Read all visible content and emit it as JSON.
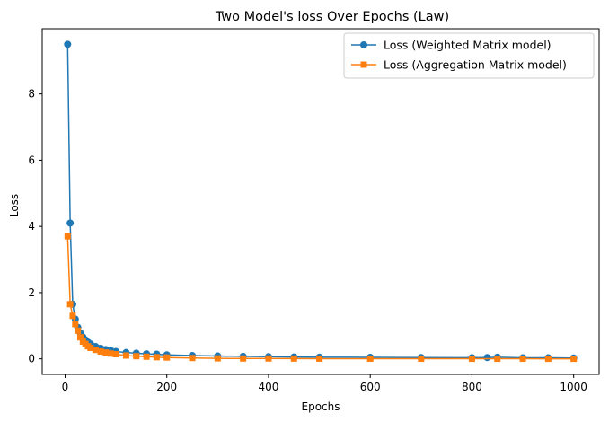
{
  "chart_data": {
    "type": "line",
    "title": "Two Model's loss Over Epochs (Law)",
    "xlabel": "Epochs",
    "ylabel": "Loss",
    "xlim": [
      -45,
      1050
    ],
    "ylim": [
      -0.47,
      9.97
    ],
    "xticks": [
      0,
      200,
      400,
      600,
      800,
      1000
    ],
    "xtick_labels": [
      "0",
      "200",
      "400",
      "600",
      "800",
      "1000"
    ],
    "yticks": [
      0,
      2,
      4,
      6,
      8
    ],
    "ytick_labels": [
      "0",
      "2",
      "4",
      "6",
      "8"
    ],
    "grid": false,
    "legend_position": "top-right",
    "series": [
      {
        "name": "Loss (Weighted Matrix model)",
        "color": "#1f77b4",
        "marker": "circle",
        "x": [
          5,
          10,
          15,
          20,
          25,
          30,
          35,
          40,
          45,
          50,
          60,
          70,
          80,
          90,
          100,
          120,
          140,
          160,
          180,
          200,
          250,
          300,
          350,
          400,
          450,
          500,
          600,
          700,
          800,
          830,
          850,
          900,
          950,
          1000
        ],
        "y": [
          9.5,
          4.1,
          1.65,
          1.2,
          0.95,
          0.78,
          0.66,
          0.57,
          0.5,
          0.45,
          0.37,
          0.32,
          0.28,
          0.25,
          0.22,
          0.19,
          0.17,
          0.15,
          0.14,
          0.12,
          0.1,
          0.085,
          0.075,
          0.065,
          0.055,
          0.05,
          0.045,
          0.04,
          0.035,
          0.04,
          0.05,
          0.03,
          0.03,
          0.025
        ]
      },
      {
        "name": "Loss (Aggregation Matrix model)",
        "color": "#ff7f0e",
        "marker": "square",
        "x": [
          5,
          10,
          15,
          20,
          25,
          30,
          35,
          40,
          45,
          50,
          60,
          70,
          80,
          90,
          100,
          120,
          140,
          160,
          180,
          200,
          250,
          300,
          350,
          400,
          450,
          500,
          600,
          700,
          800,
          850,
          900,
          950,
          1000
        ],
        "y": [
          3.7,
          1.65,
          1.3,
          1.05,
          0.85,
          0.65,
          0.52,
          0.45,
          0.38,
          0.33,
          0.27,
          0.22,
          0.19,
          0.16,
          0.14,
          0.1,
          0.08,
          0.065,
          0.05,
          0.04,
          0.025,
          0.015,
          0.01,
          0.01,
          0.008,
          0.006,
          0.005,
          0.004,
          0.003,
          0.003,
          0.003,
          0.002,
          0.002
        ]
      }
    ]
  }
}
